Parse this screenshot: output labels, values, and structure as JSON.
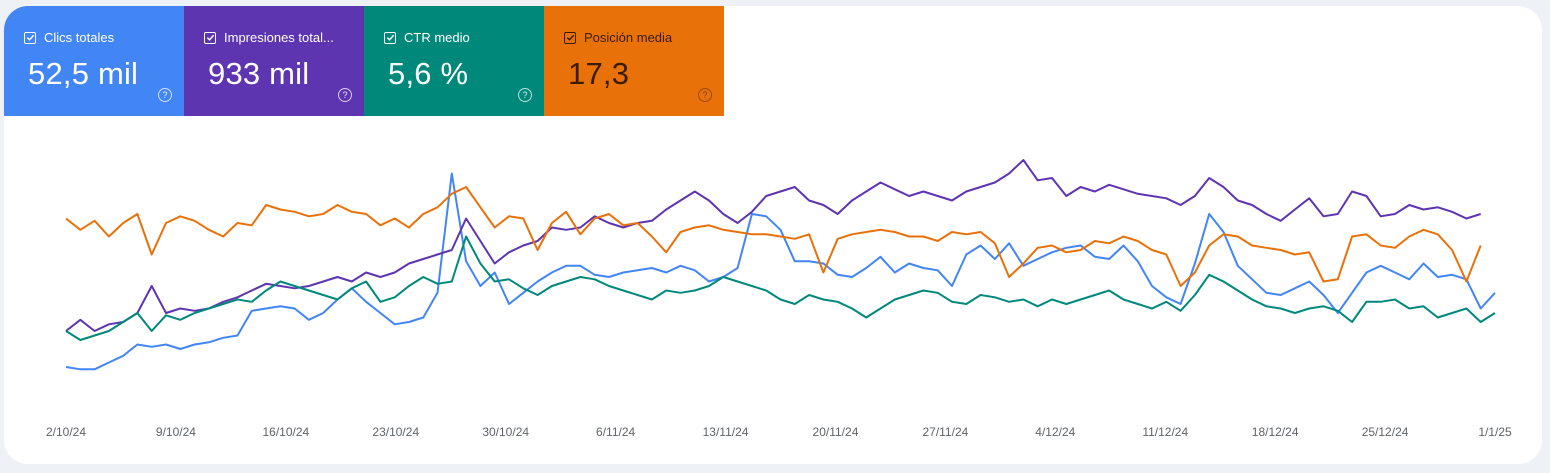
{
  "metrics": [
    {
      "label": "Clics totales",
      "value": "52,5 mil",
      "color": "#4285f4",
      "text_color": "#ffffff"
    },
    {
      "label": "Impresiones total...",
      "value": "933 mil",
      "color": "#5e35b1",
      "text_color": "#ffffff"
    },
    {
      "label": "CTR medio",
      "value": "5,6 %",
      "color": "#00897b",
      "text_color": "#ffffff"
    },
    {
      "label": "Posición media",
      "value": "17,3",
      "color": "#e8710a",
      "text_color": "#3a1d00"
    }
  ],
  "help_icon": "help-circle-icon",
  "checkbox_icon": "checkbox-checked-icon",
  "chart_data": {
    "type": "line",
    "x_start": "2/10/24",
    "x_end": "1/1/25",
    "x_ticks": [
      "2/10/24",
      "9/10/24",
      "16/10/24",
      "23/10/24",
      "30/10/24",
      "6/11/24",
      "13/11/24",
      "20/11/24",
      "27/11/24",
      "4/12/24",
      "11/12/24",
      "18/12/24",
      "25/12/24",
      "1/1/25"
    ],
    "y_scale": "normalized 0-100 per series (no y axis shown)",
    "ylim": [
      0,
      100
    ],
    "grid": false,
    "series": [
      {
        "name": "Clics totales",
        "color": "#4285f4",
        "values": [
          4,
          3,
          3,
          6,
          9,
          14,
          13,
          14,
          12,
          14,
          15,
          17,
          18,
          29,
          30,
          31,
          30,
          25,
          28,
          34,
          39,
          33,
          28,
          23,
          24,
          26,
          37,
          90,
          51,
          40,
          46,
          32,
          37,
          42,
          46,
          49,
          49,
          45,
          44,
          46,
          47,
          48,
          46,
          49,
          47,
          42,
          44,
          48,
          72,
          71,
          65,
          51,
          51,
          50,
          45,
          44,
          48,
          53,
          46,
          50,
          48,
          47,
          40,
          54,
          58,
          52,
          59,
          49,
          52,
          55,
          57,
          58,
          53,
          52,
          58,
          51,
          40,
          35,
          32,
          50,
          72,
          64,
          49,
          43,
          37,
          36,
          39,
          42,
          36,
          28,
          37,
          46,
          49,
          46,
          43,
          50,
          44,
          45,
          43,
          30,
          37
        ]
      },
      {
        "name": "Impresiones totales",
        "color": "#5e35b1",
        "values": [
          20,
          25,
          20,
          23,
          24,
          28,
          40,
          28,
          30,
          29,
          30,
          33,
          35,
          38,
          41,
          40,
          39,
          40,
          42,
          44,
          42,
          46,
          44,
          46,
          50,
          52,
          54,
          56,
          70,
          60,
          50,
          55,
          58,
          60,
          66,
          65,
          66,
          71,
          68,
          66,
          68,
          69,
          74,
          78,
          82,
          78,
          72,
          68,
          73,
          80,
          82,
          84,
          78,
          76,
          72,
          78,
          82,
          86,
          83,
          80,
          82,
          80,
          78,
          82,
          84,
          86,
          90,
          96,
          87,
          88,
          80,
          84,
          82,
          85,
          83,
          81,
          80,
          79,
          76,
          80,
          88,
          84,
          78,
          76,
          72,
          69,
          74,
          79,
          71,
          72,
          82,
          80,
          71,
          72,
          76,
          74,
          75,
          73,
          70,
          72
        ]
      },
      {
        "name": "CTR medio",
        "color": "#00897b",
        "values": [
          20,
          16,
          18,
          20,
          24,
          28,
          20,
          27,
          25,
          28,
          30,
          32,
          34,
          33,
          38,
          42,
          40,
          38,
          36,
          34,
          39,
          42,
          33,
          35,
          40,
          44,
          41,
          42,
          62,
          50,
          42,
          43,
          39,
          36,
          40,
          42,
          44,
          43,
          40,
          38,
          36,
          34,
          38,
          37,
          38,
          40,
          44,
          42,
          40,
          38,
          34,
          32,
          36,
          34,
          33,
          30,
          26,
          30,
          34,
          36,
          38,
          37,
          33,
          32,
          36,
          35,
          33,
          34,
          31,
          34,
          32,
          34,
          36,
          38,
          34,
          32,
          30,
          33,
          29,
          36,
          45,
          42,
          38,
          34,
          31,
          30,
          28,
          30,
          31,
          29,
          24,
          33,
          33,
          34,
          30,
          31,
          26,
          28,
          30,
          24,
          28
        ]
      },
      {
        "name": "Posición media",
        "color": "#e8710a",
        "values": [
          70,
          65,
          69,
          62,
          68,
          72,
          54,
          68,
          71,
          69,
          65,
          62,
          68,
          67,
          76,
          74,
          73,
          71,
          72,
          76,
          73,
          72,
          67,
          70,
          66,
          72,
          75,
          81,
          84,
          75,
          66,
          71,
          70,
          56,
          68,
          73,
          63,
          70,
          72,
          67,
          68,
          62,
          55,
          64,
          66,
          67,
          65,
          64,
          63,
          63,
          62,
          61,
          63,
          46,
          61,
          63,
          64,
          65,
          64,
          62,
          62,
          60,
          64,
          63,
          64,
          59,
          44,
          50,
          57,
          58,
          55,
          56,
          60,
          59,
          62,
          60,
          56,
          54,
          40,
          46,
          58,
          63,
          62,
          58,
          57,
          56,
          54,
          55,
          42,
          43,
          62,
          63,
          58,
          57,
          62,
          65,
          63,
          56,
          42,
          58
        ]
      }
    ]
  }
}
